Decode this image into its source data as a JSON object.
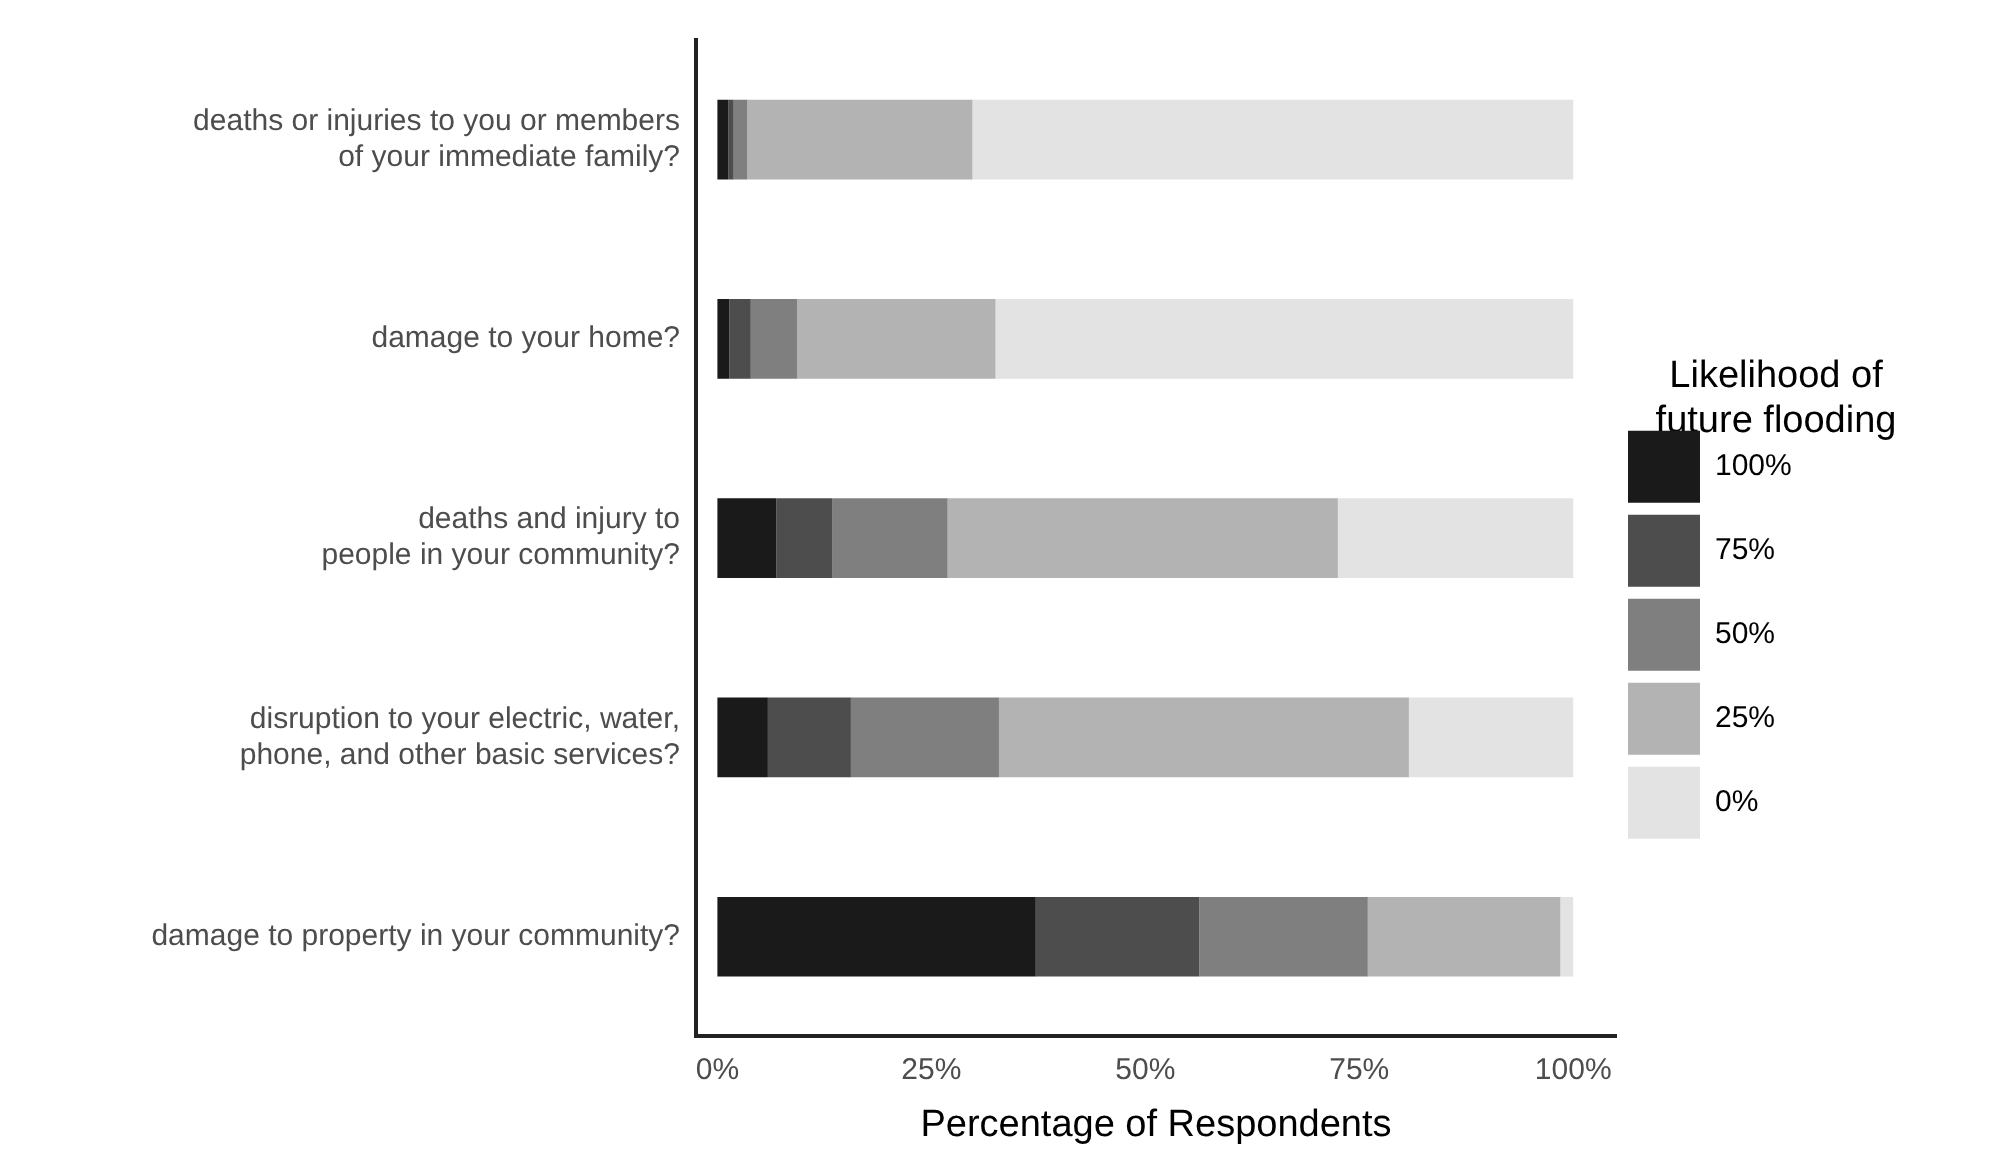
{
  "chart_data": {
    "type": "bar",
    "orientation": "horizontal",
    "stacked": true,
    "categories": [
      "deaths or injuries to you or members\nof your immediate family?",
      "damage to your home?",
      "deaths and injury to\npeople in your community?",
      "disruption to your electric, water,\nphone, and other basic services?",
      "damage to property in your community?"
    ],
    "series": [
      {
        "name": "100%",
        "color": "#1a1a1a",
        "values": [
          1.3,
          1.4,
          6.9,
          5.9,
          37.2
        ]
      },
      {
        "name": "75%",
        "color": "#4d4d4d",
        "values": [
          0.6,
          2.5,
          6.5,
          9.7,
          19.1
        ]
      },
      {
        "name": "50%",
        "color": "#7f7f7f",
        "values": [
          1.6,
          5.4,
          13.5,
          17.3,
          19.7
        ]
      },
      {
        "name": "25%",
        "color": "#b3b3b3",
        "values": [
          26.3,
          23.2,
          45.6,
          47.9,
          22.5
        ]
      },
      {
        "name": "0%",
        "color": "#e3e3e3",
        "values": [
          70.2,
          67.5,
          27.5,
          19.2,
          1.5
        ]
      }
    ],
    "xlim": [
      -2.5,
      105
    ],
    "xticks": [
      {
        "value": 0,
        "label": "0%"
      },
      {
        "value": 25,
        "label": "25%"
      },
      {
        "value": 50,
        "label": "50%"
      },
      {
        "value": 75,
        "label": "75%"
      },
      {
        "value": 100,
        "label": "100%"
      }
    ],
    "xlabel": "Percentage of Respondents",
    "legend_title": "Likelihood of\nfuture flooding",
    "legend": "right",
    "grid": false
  }
}
